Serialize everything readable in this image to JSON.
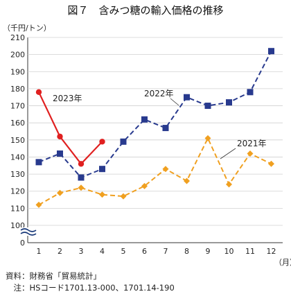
{
  "chart_data": {
    "type": "line",
    "title": "図７　含みつ糖の輸入価格の推移",
    "ylabel": "（千円/トン）",
    "xlabel": "（月）",
    "categories": [
      "1",
      "2",
      "3",
      "4",
      "5",
      "6",
      "7",
      "8",
      "9",
      "10",
      "11",
      "12"
    ],
    "yticks": [
      "0",
      "100",
      "110",
      "120",
      "130",
      "140",
      "150",
      "160",
      "170",
      "180",
      "190",
      "200",
      "210"
    ],
    "ylim": [
      100,
      210
    ],
    "axis_break": true,
    "series": [
      {
        "name": "2023年",
        "color": "#e02020",
        "style": "solid",
        "marker": "circle",
        "values": [
          178,
          152,
          136,
          149,
          null,
          null,
          null,
          null,
          null,
          null,
          null,
          null
        ]
      },
      {
        "name": "2022年",
        "color": "#283a8e",
        "style": "dashed",
        "marker": "square",
        "values": [
          137,
          142,
          128,
          133,
          149,
          162,
          157,
          175,
          170,
          172,
          178,
          202
        ]
      },
      {
        "name": "2021年",
        "color": "#f0a020",
        "style": "dashed",
        "marker": "diamond",
        "values": [
          112,
          119,
          122,
          118,
          117,
          123,
          133,
          126,
          151,
          124,
          142,
          136
        ]
      }
    ]
  },
  "notes": {
    "source": "資料：財務省「貿易統計」",
    "note": "　注：HSコード1701.13-000、1701.14-190"
  }
}
